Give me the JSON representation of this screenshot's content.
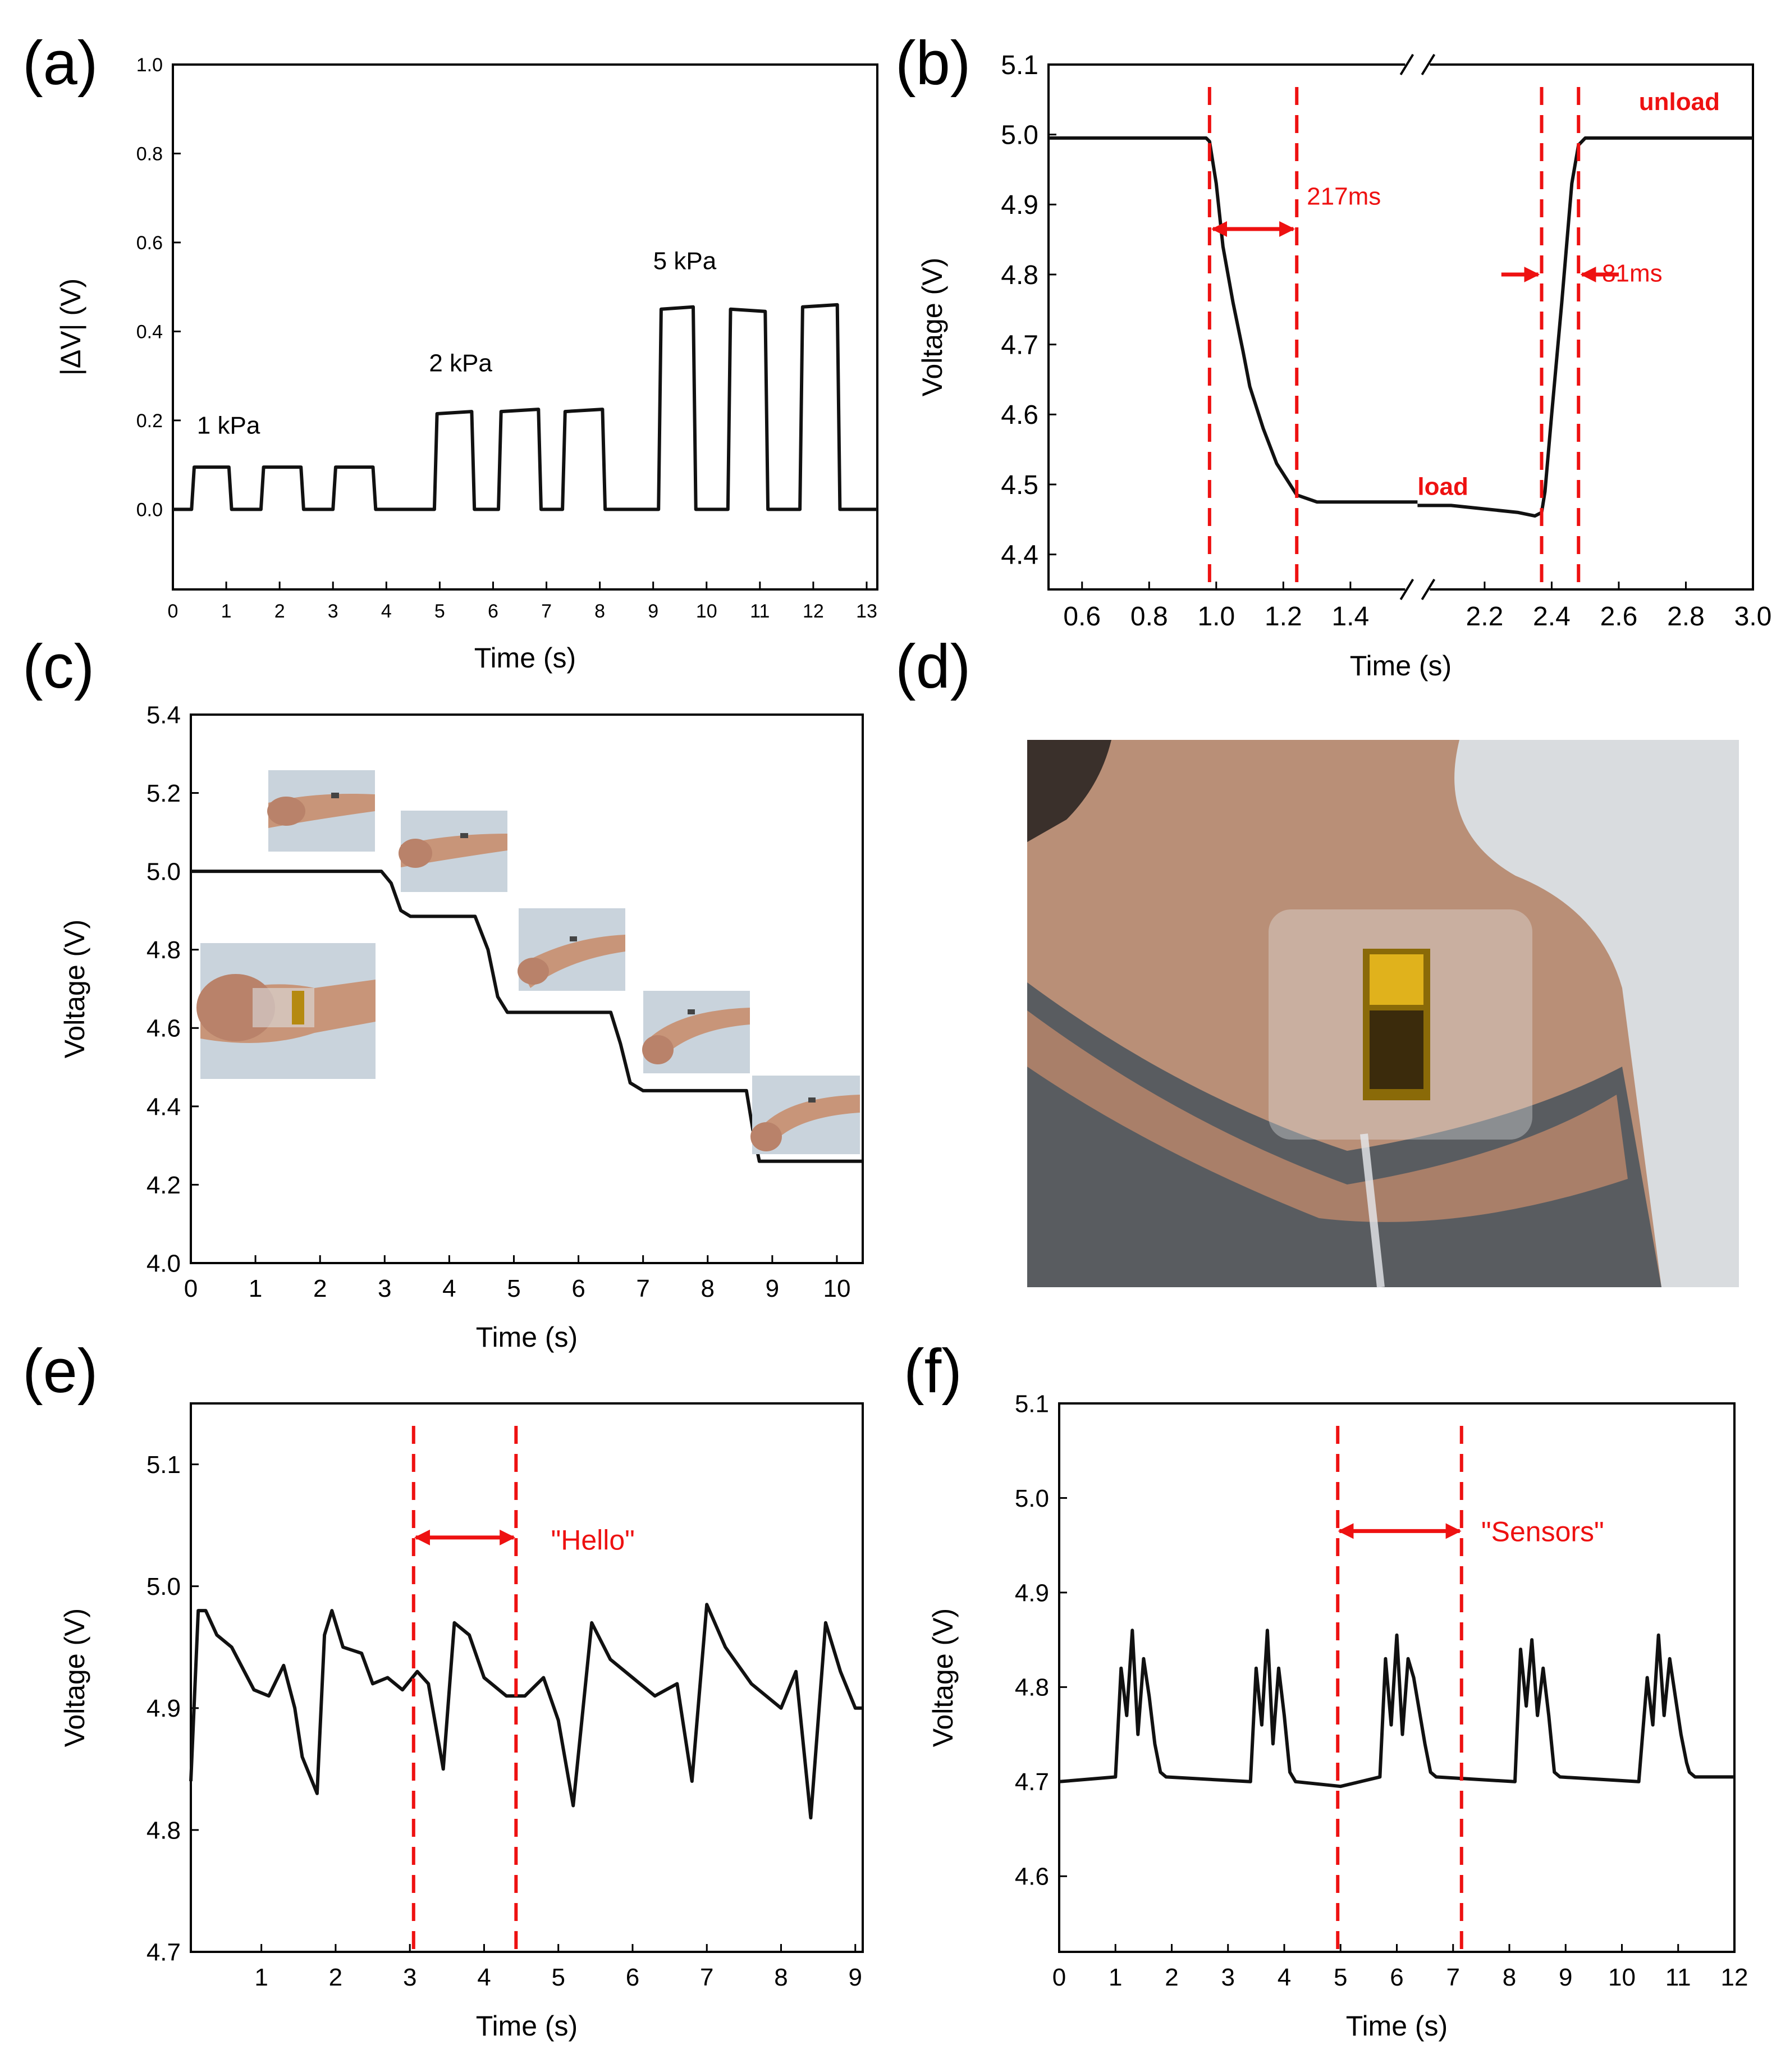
{
  "chart_data": [
    {
      "panel": "(a)",
      "type": "line",
      "xlabel": "Time (s)",
      "ylabel": "|ΔV| (V)",
      "xlim": [
        0,
        13.2
      ],
      "ylim": [
        -0.18,
        1.0
      ],
      "xticks": [
        0,
        1,
        2,
        3,
        4,
        5,
        6,
        7,
        8,
        9,
        10,
        11,
        12,
        13
      ],
      "yticks": [
        0.0,
        0.2,
        0.4,
        0.6,
        0.8,
        1.0
      ],
      "ytick_labels": [
        "0.0",
        "0.2",
        "0.4",
        "0.6",
        "0.8",
        "1.0"
      ],
      "annotations": [
        {
          "text": "1 kPa",
          "x": 0.45,
          "y": 0.17
        },
        {
          "text": "2 kPa",
          "x": 4.8,
          "y": 0.31
        },
        {
          "text": "5 kPa",
          "x": 9.0,
          "y": 0.54
        }
      ],
      "series": [
        {
          "name": "ΔV",
          "x": [
            0,
            0.35,
            0.4,
            1.05,
            1.1,
            1.65,
            1.7,
            2.4,
            2.45,
            3.0,
            3.05,
            3.75,
            3.8,
            4.9,
            4.95,
            5.6,
            5.65,
            6.1,
            6.15,
            6.85,
            6.9,
            7.3,
            7.35,
            8.05,
            8.1,
            9.1,
            9.15,
            9.75,
            9.8,
            10.4,
            10.45,
            11.1,
            11.15,
            11.75,
            11.8,
            12.45,
            12.5,
            13.2
          ],
          "values": [
            0,
            0,
            0.095,
            0.095,
            0,
            0,
            0.095,
            0.095,
            0,
            0,
            0.095,
            0.095,
            0,
            0,
            0.215,
            0.22,
            0,
            0,
            0.22,
            0.225,
            0,
            0,
            0.22,
            0.225,
            0,
            0,
            0.45,
            0.455,
            0,
            0,
            0.45,
            0.445,
            0,
            0,
            0.455,
            0.46,
            0,
            0
          ]
        }
      ]
    },
    {
      "panel": "(b)",
      "type": "line",
      "xlabel": "Time (s)",
      "ylabel": "Voltage (V)",
      "axis_break": [
        1.6,
        2.0
      ],
      "xlim": [
        0.5,
        3.0
      ],
      "ylim": [
        4.35,
        5.1
      ],
      "xticks": [
        0.6,
        0.8,
        1.0,
        1.2,
        1.4,
        2.2,
        2.4,
        2.6,
        2.8,
        3.0
      ],
      "xtick_labels": [
        "0.6",
        "0.8",
        "1.0",
        "1.2",
        "1.4",
        "2.2",
        "2.4",
        "2.6",
        "2.8",
        "3.0"
      ],
      "yticks": [
        4.4,
        4.5,
        4.6,
        4.7,
        4.8,
        4.9,
        5.0,
        5.1
      ],
      "ytick_labels": [
        "4.4",
        "4.5",
        "4.6",
        "4.7",
        "4.8",
        "4.9",
        "5.0",
        "5.1"
      ],
      "annotations": [
        {
          "text": "217ms",
          "x": 1.27,
          "y": 4.9
        },
        {
          "text": "81ms",
          "x": 2.55,
          "y": 4.79
        },
        {
          "text": "load",
          "x": 1.65,
          "y": 4.485
        },
        {
          "text": "unload",
          "x": 2.66,
          "y": 5.035
        }
      ],
      "markers": [
        0.98,
        1.24,
        2.37,
        2.48
      ],
      "series": [
        {
          "name": "Voltage",
          "x": [
            0.5,
            0.97,
            0.98,
            1.0,
            1.02,
            1.05,
            1.08,
            1.1,
            1.14,
            1.18,
            1.22,
            1.24,
            1.3,
            1.4,
            1.5,
            1.6,
            2.0,
            2.1,
            2.2,
            2.3,
            2.35,
            2.37,
            2.38,
            2.4,
            2.43,
            2.46,
            2.48,
            2.5,
            2.6,
            3.0
          ],
          "values": [
            4.995,
            4.995,
            4.99,
            4.93,
            4.84,
            4.76,
            4.69,
            4.64,
            4.58,
            4.53,
            4.5,
            4.485,
            4.475,
            4.475,
            4.475,
            4.475,
            4.47,
            4.47,
            4.465,
            4.46,
            4.455,
            4.46,
            4.49,
            4.6,
            4.76,
            4.93,
            4.985,
            4.995,
            4.995,
            4.995
          ]
        }
      ]
    },
    {
      "panel": "(c)",
      "type": "line",
      "xlabel": "Time (s)",
      "ylabel": "Voltage (V)",
      "xlim": [
        0,
        10.4
      ],
      "ylim": [
        4.0,
        5.4
      ],
      "xticks": [
        0,
        1,
        2,
        3,
        4,
        5,
        6,
        7,
        8,
        9,
        10
      ],
      "yticks": [
        4.0,
        4.2,
        4.4,
        4.6,
        4.8,
        5.0,
        5.2,
        5.4
      ],
      "ytick_labels": [
        "4.0",
        "4.2",
        "4.4",
        "4.6",
        "4.8",
        "5.0",
        "5.2",
        "5.4"
      ],
      "series": [
        {
          "name": "Voltage",
          "x": [
            0,
            2.95,
            3.1,
            3.25,
            3.4,
            4.4,
            4.6,
            4.75,
            4.9,
            6.5,
            6.65,
            6.8,
            7.0,
            8.6,
            8.7,
            8.8,
            9.0,
            10.4
          ],
          "values": [
            5.0,
            5.0,
            4.97,
            4.9,
            4.885,
            4.885,
            4.8,
            4.68,
            4.64,
            4.64,
            4.56,
            4.46,
            4.44,
            4.44,
            4.34,
            4.26,
            4.26,
            4.26
          ]
        }
      ]
    },
    {
      "panel": "(e)",
      "type": "line",
      "xlabel": "Time (s)",
      "ylabel": "Voltage (V)",
      "xlim": [
        0.05,
        9.1
      ],
      "ylim": [
        4.7,
        5.15
      ],
      "xticks": [
        1,
        2,
        3,
        4,
        5,
        6,
        7,
        8,
        9
      ],
      "yticks": [
        4.7,
        4.8,
        4.9,
        5.0,
        5.1
      ],
      "ytick_labels": [
        "4.7",
        "4.8",
        "4.9",
        "5.0",
        "5.1"
      ],
      "annotations": [
        {
          "text": "\"Hello\"",
          "x": 4.9,
          "y": 5.03
        }
      ],
      "markers": [
        3.05,
        4.43
      ],
      "series": [
        {
          "name": "Voltage",
          "x": [
            0.05,
            0.15,
            0.25,
            0.4,
            0.6,
            0.9,
            1.1,
            1.3,
            1.45,
            1.55,
            1.75,
            1.85,
            1.95,
            2.1,
            2.35,
            2.5,
            2.7,
            2.9,
            3.1,
            3.25,
            3.45,
            3.6,
            3.8,
            4.0,
            4.3,
            4.55,
            4.8,
            5.0,
            5.2,
            5.45,
            5.7,
            6.0,
            6.3,
            6.6,
            6.8,
            7.0,
            7.25,
            7.6,
            8.0,
            8.2,
            8.4,
            8.6,
            8.8,
            9.0,
            9.1
          ],
          "values": [
            4.84,
            4.98,
            4.98,
            4.96,
            4.95,
            4.915,
            4.91,
            4.935,
            4.9,
            4.86,
            4.83,
            4.96,
            4.98,
            4.95,
            4.945,
            4.92,
            4.925,
            4.915,
            4.93,
            4.92,
            4.85,
            4.97,
            4.96,
            4.925,
            4.91,
            4.91,
            4.925,
            4.89,
            4.82,
            4.97,
            4.94,
            4.925,
            4.91,
            4.92,
            4.84,
            4.985,
            4.95,
            4.92,
            4.9,
            4.93,
            4.81,
            4.97,
            4.93,
            4.9,
            4.9
          ]
        }
      ]
    },
    {
      "panel": "(f)",
      "type": "line",
      "xlabel": "Time (s)",
      "ylabel": "Voltage (V)",
      "xlim": [
        0,
        12
      ],
      "ylim": [
        4.52,
        5.1
      ],
      "xticks": [
        0,
        1,
        2,
        3,
        4,
        5,
        6,
        7,
        8,
        9,
        10,
        11,
        12
      ],
      "yticks": [
        4.6,
        4.7,
        4.8,
        4.9,
        5.0,
        5.1
      ],
      "ytick_labels": [
        "4.6",
        "4.7",
        "4.8",
        "4.9",
        "5.0",
        "5.1"
      ],
      "annotations": [
        {
          "text": "\"Sensors\"",
          "x": 7.5,
          "y": 4.965
        }
      ],
      "markers": [
        4.95,
        7.15
      ],
      "series": [
        {
          "name": "Voltage",
          "x": [
            0,
            1.0,
            1.1,
            1.2,
            1.3,
            1.4,
            1.5,
            1.6,
            1.7,
            1.8,
            1.9,
            3.4,
            3.5,
            3.6,
            3.7,
            3.8,
            3.9,
            4.0,
            4.1,
            4.2,
            5.0,
            5.7,
            5.8,
            5.9,
            6.0,
            6.1,
            6.2,
            6.3,
            6.5,
            6.6,
            6.7,
            8.1,
            8.2,
            8.3,
            8.4,
            8.5,
            8.6,
            8.7,
            8.8,
            8.9,
            10.3,
            10.45,
            10.55,
            10.65,
            10.75,
            10.85,
            10.95,
            11.05,
            11.15,
            11.2,
            11.3,
            12.0
          ],
          "values": [
            4.7,
            4.705,
            4.82,
            4.77,
            4.86,
            4.75,
            4.83,
            4.79,
            4.74,
            4.71,
            4.705,
            4.7,
            4.82,
            4.76,
            4.86,
            4.74,
            4.82,
            4.77,
            4.71,
            4.7,
            4.695,
            4.705,
            4.83,
            4.76,
            4.855,
            4.75,
            4.83,
            4.81,
            4.74,
            4.71,
            4.705,
            4.7,
            4.84,
            4.78,
            4.85,
            4.77,
            4.82,
            4.77,
            4.71,
            4.705,
            4.7,
            4.81,
            4.76,
            4.855,
            4.77,
            4.83,
            4.79,
            4.75,
            4.72,
            4.71,
            4.705,
            4.705
          ]
        }
      ]
    }
  ],
  "photos": {
    "wrist": "wrist photos",
    "neck": "neck photo"
  },
  "colors": {
    "trace": "#111111",
    "marker": "#ee1111",
    "frame": "#000000"
  }
}
